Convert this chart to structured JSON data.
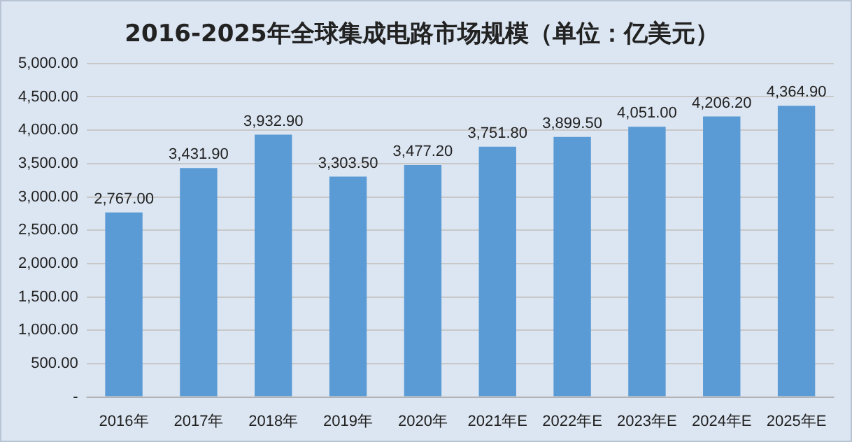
{
  "chart_data": {
    "type": "bar",
    "title": "2016-2025年全球集成电路市场规模（单位：亿美元）",
    "categories": [
      "2016年",
      "2017年",
      "2018年",
      "2019年",
      "2020年",
      "2021年E",
      "2022年E",
      "2023年E",
      "2024年E",
      "2025年E"
    ],
    "values": [
      2767.0,
      3431.9,
      3932.9,
      3303.5,
      3477.2,
      3751.8,
      3899.5,
      4051.0,
      4206.2,
      4364.9
    ],
    "value_labels": [
      "2,767.00",
      "3,431.90",
      "3,932.90",
      "3,303.50",
      "3,477.20",
      "3,751.80",
      "3,899.50",
      "4,051.00",
      "4,206.20",
      "4,364.90"
    ],
    "color": "#5b9bd5",
    "ylim": [
      0,
      5000
    ],
    "yticks": [
      {
        "value": 0,
        "label": "-"
      },
      {
        "value": 500,
        "label": "500.00"
      },
      {
        "value": 1000,
        "label": "1,000.00"
      },
      {
        "value": 1500,
        "label": "1,500.00"
      },
      {
        "value": 2000,
        "label": "2,000.00"
      },
      {
        "value": 2500,
        "label": "2,500.00"
      },
      {
        "value": 3000,
        "label": "3,000.00"
      },
      {
        "value": 3500,
        "label": "3,500.00"
      },
      {
        "value": 4000,
        "label": "4,000.00"
      },
      {
        "value": 4500,
        "label": "4,500.00"
      },
      {
        "value": 5000,
        "label": "5,000.00"
      }
    ],
    "grid": "y",
    "legend": false
  }
}
